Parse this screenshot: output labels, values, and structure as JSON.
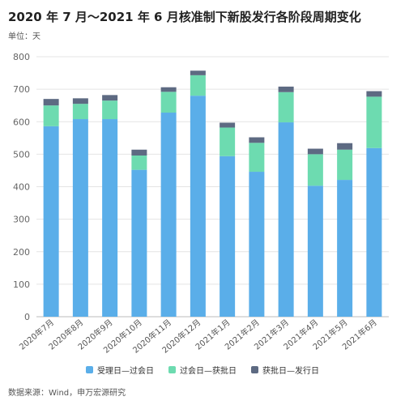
{
  "title": "2020 年 7 月～2021 年 6 月核准制下新股发行各阶段周期变化",
  "unit": "单位：天",
  "source": "数据来源：Wind，申万宏源研究",
  "colors": {
    "accept_to_approval": "#5aaee9",
    "approval_to_registration": "#6ddbb0",
    "registration_to_issuance": "#5d6a82"
  },
  "legend": [
    {
      "label": "受理日—过会日",
      "color": "#5aaee9"
    },
    {
      "label": "过会日—获批日",
      "color": "#6ddbb0"
    },
    {
      "label": "获批日—发行日",
      "color": "#5d6a82"
    }
  ],
  "chart_data": {
    "type": "bar",
    "stacked": true,
    "categories": [
      "2020年7月",
      "2020年8月",
      "2020年9月",
      "2020年10月",
      "2020年11月",
      "2020年12月",
      "2021年1月",
      "2021年2月",
      "2021年3月",
      "2021年4月",
      "2021年5月",
      "2021年6月"
    ],
    "series": [
      {
        "name": "受理日—过会日",
        "values": [
          586,
          608,
          608,
          452,
          628,
          680,
          494,
          446,
          598,
          403,
          421,
          519
        ]
      },
      {
        "name": "过会日—获批日",
        "values": [
          64,
          47,
          57,
          44,
          64,
          63,
          88,
          89,
          93,
          97,
          93,
          158
        ]
      },
      {
        "name": "获批日—发行日",
        "values": [
          20,
          17,
          17,
          18,
          14,
          14,
          15,
          17,
          17,
          17,
          20,
          17
        ]
      }
    ],
    "yticks": [
      0,
      100,
      200,
      300,
      400,
      500,
      600,
      700,
      800
    ],
    "ylim": [
      0,
      800
    ],
    "grid": true,
    "legend_position": "bottom"
  }
}
